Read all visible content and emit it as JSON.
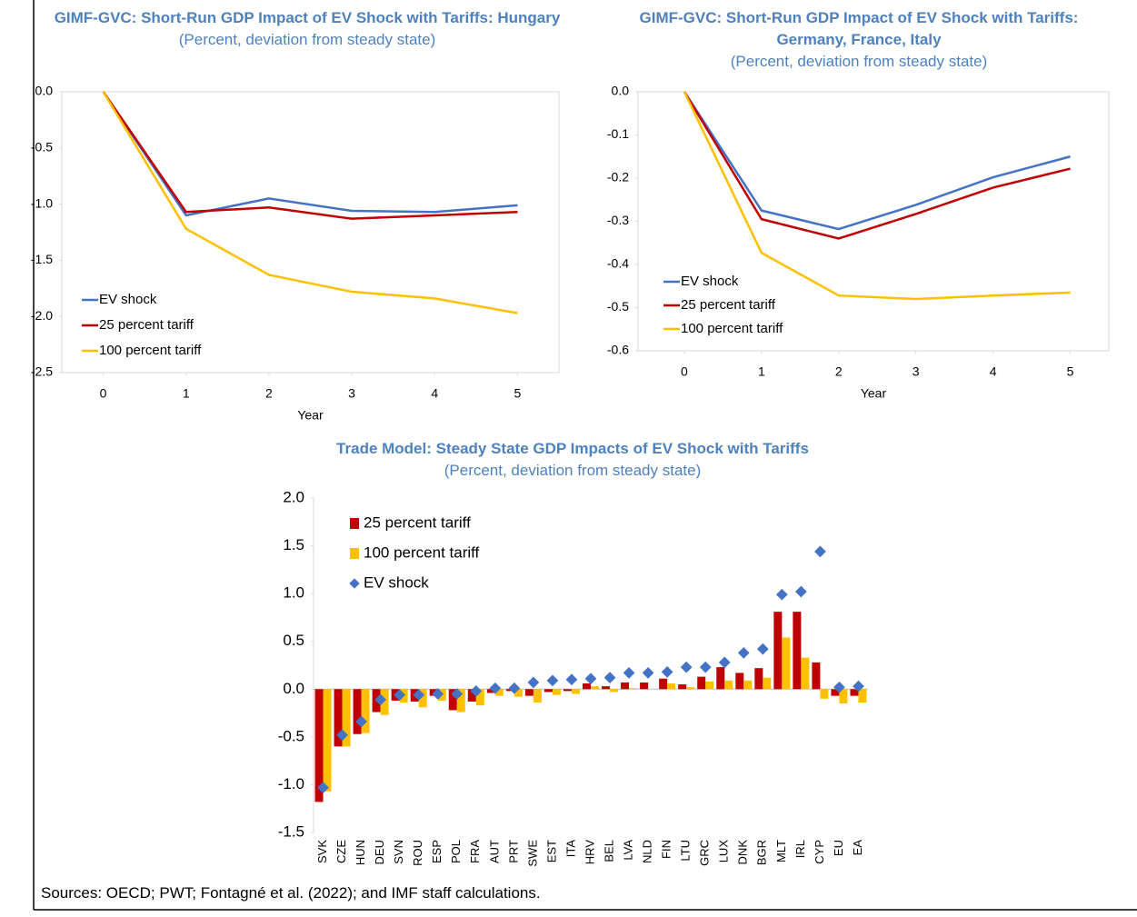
{
  "chart_data": [
    {
      "type": "line",
      "title": "GIMF-GVC: Short-Run GDP Impact of EV Shock with Tariffs: Hungary",
      "subtitle": "(Percent, deviation from steady state)",
      "x": [
        0,
        1,
        2,
        3,
        4,
        5
      ],
      "xlabel": "Year",
      "xlim": [
        -0.5,
        5.5
      ],
      "xticks": [
        0,
        1,
        2,
        3,
        4,
        5
      ],
      "ylim": [
        -2.5,
        0
      ],
      "yticks": [
        {
          "value": 0,
          "label": "0.0"
        },
        -0.5,
        {
          "value": -1,
          "label": "-1.0"
        },
        -1.5,
        {
          "value": -2,
          "label": "-2.0"
        },
        -2.5
      ],
      "legend": "lower left",
      "series": [
        {
          "name": "EV shock",
          "color": "#4472c4",
          "values": [
            0,
            -1.1,
            -0.95,
            -1.06,
            -1.07,
            -1.01
          ]
        },
        {
          "name": "25 percent tariff",
          "color": "#c00000",
          "values": [
            0,
            -1.07,
            -1.03,
            -1.13,
            -1.1,
            -1.07
          ]
        },
        {
          "name": "100 percent tariff",
          "color": "#ffc000",
          "values": [
            0,
            -1.22,
            -1.63,
            -1.78,
            -1.84,
            -1.97
          ]
        }
      ]
    },
    {
      "type": "line",
      "title": "GIMF-GVC: Short-Run GDP Impact of EV Shock with Tariffs: Germany, France, Italy",
      "subtitle": "(Percent, deviation from steady state)",
      "x": [
        0,
        1,
        2,
        3,
        4,
        5
      ],
      "xlabel": "Year",
      "xlim": [
        -0.6,
        5.5
      ],
      "xticks": [
        0,
        1,
        2,
        3,
        4,
        5
      ],
      "ylim": [
        -0.6,
        0
      ],
      "yticks": [
        {
          "value": 0,
          "label": "0.0"
        },
        -0.1,
        -0.2,
        -0.3,
        -0.4,
        -0.5,
        -0.6
      ],
      "legend": "lower left",
      "series": [
        {
          "name": "EV shock",
          "color": "#4472c4",
          "values": [
            0,
            -0.275,
            -0.318,
            -0.262,
            -0.198,
            -0.15
          ]
        },
        {
          "name": "25 percent tariff",
          "color": "#c00000",
          "values": [
            0,
            -0.295,
            -0.34,
            -0.283,
            -0.222,
            -0.178
          ]
        },
        {
          "name": "100 percent tariff",
          "color": "#ffc000",
          "values": [
            0,
            -0.373,
            -0.472,
            -0.48,
            -0.472,
            -0.465
          ]
        }
      ]
    },
    {
      "type": "bar",
      "title": "Trade Model: Steady State GDP Impacts of EV Shock with Tariffs",
      "subtitle": "(Percent, deviation from steady state)",
      "categories": [
        "SVK",
        "CZE",
        "HUN",
        "DEU",
        "SVN",
        "ROU",
        "ESP",
        "POL",
        "FRA",
        "AUT",
        "PRT",
        "SWE",
        "EST",
        "ITA",
        "HRV",
        "BEL",
        "LVA",
        "NLD",
        "FIN",
        "LTU",
        "GRC",
        "LUX",
        "DNK",
        "BGR",
        "MLT",
        "IRL",
        "CYP",
        "EU",
        "EA"
      ],
      "ylim": [
        -1.5,
        2
      ],
      "yticks": [
        {
          "value": 2,
          "label": "2.0"
        },
        1.5,
        {
          "value": 1,
          "label": "1.0"
        },
        0.5,
        {
          "value": 0,
          "label": "0.0"
        },
        -0.5,
        {
          "value": -1,
          "label": "-1.0"
        },
        -1.5
      ],
      "legend": "upper left",
      "series": [
        {
          "name": "25 percent tariff",
          "color": "#c00000",
          "marker": "bar",
          "values": [
            -1.18,
            -0.6,
            -0.47,
            -0.24,
            -0.12,
            -0.13,
            -0.07,
            -0.22,
            -0.13,
            -0.04,
            -0.02,
            -0.07,
            -0.03,
            -0.02,
            0.06,
            0.03,
            0.07,
            0.07,
            0.11,
            0.05,
            0.13,
            0.23,
            0.17,
            0.22,
            0.81,
            0.81,
            0.28,
            -0.07,
            -0.07
          ]
        },
        {
          "name": "100 percent tariff",
          "color": "#ffc000",
          "marker": "bar",
          "values": [
            -1.07,
            -0.6,
            -0.46,
            -0.27,
            -0.14,
            -0.19,
            -0.12,
            -0.24,
            -0.17,
            -0.07,
            -0.08,
            -0.14,
            -0.06,
            -0.05,
            0.03,
            -0.03,
            0.01,
            0.0,
            0.06,
            0.02,
            0.08,
            0.09,
            0.09,
            0.12,
            0.54,
            0.33,
            -0.1,
            -0.15,
            -0.14
          ]
        },
        {
          "name": "EV shock",
          "color": "#4472c4",
          "marker": "diamond",
          "values": [
            -1.03,
            -0.48,
            -0.34,
            -0.11,
            -0.06,
            -0.06,
            -0.05,
            -0.05,
            -0.02,
            0.01,
            0.01,
            0.07,
            0.09,
            0.1,
            0.11,
            0.12,
            0.17,
            0.17,
            0.18,
            0.23,
            0.23,
            0.28,
            0.38,
            0.42,
            0.99,
            1.02,
            1.44,
            0.02,
            0.03
          ]
        }
      ]
    }
  ],
  "note": "Sources: OECD; PWT; Fontagné et al. (2022); and IMF staff calculations."
}
